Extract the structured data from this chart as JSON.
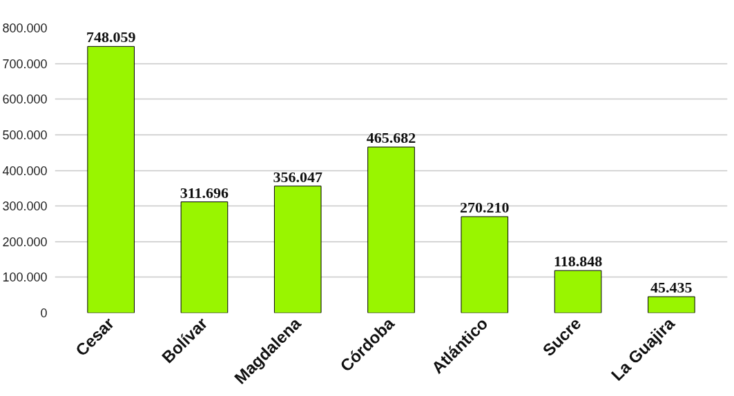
{
  "chart_data": {
    "type": "bar",
    "categories": [
      "Cesar",
      "Bolívar",
      "Magdalena",
      "Córdoba",
      "Atlántico",
      "Sucre",
      "La Guajira"
    ],
    "values": [
      748059,
      311696,
      356047,
      465682,
      270210,
      118848,
      45435
    ],
    "value_labels": [
      "748.059",
      "311.696",
      "356.047",
      "465.682",
      "270.210",
      "118.848",
      "45.435"
    ],
    "color": "#99f500",
    "ylim": [
      0,
      800000
    ],
    "yticks": [
      0,
      {
        "value": 100000,
        "label": "100.000"
      },
      {
        "value": 200000,
        "label": "200.000"
      },
      {
        "value": 300000,
        "label": "300.000"
      },
      {
        "value": 400000,
        "label": "400.000"
      },
      {
        "value": 500000,
        "label": "500.000"
      },
      {
        "value": 600000,
        "label": "600.000"
      },
      {
        "value": 700000,
        "label": "700.000"
      },
      {
        "value": 800000,
        "label": "800.000"
      }
    ],
    "grid": "y"
  }
}
